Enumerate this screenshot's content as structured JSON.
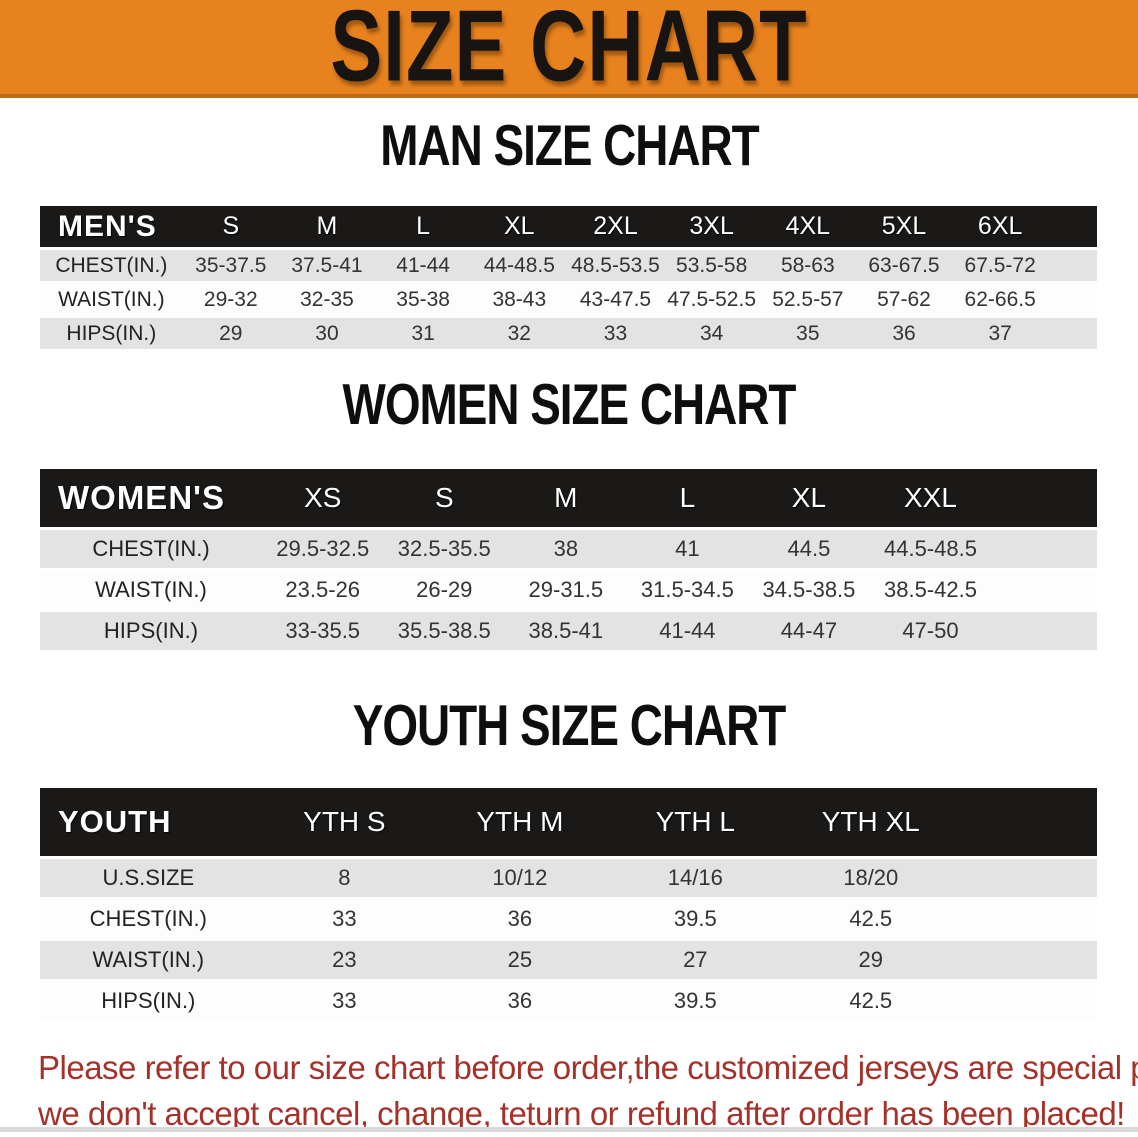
{
  "banner": {
    "title": "SIZE CHART",
    "bg_color": "#E8821E",
    "text_color": "#171412"
  },
  "colors": {
    "table_header_bg": "#1B1917",
    "row_shade": "#E3E3E3",
    "row_plain": "#FDFDFD",
    "disclaimer_text": "#A5322A"
  },
  "sections": [
    {
      "heading": "MAN SIZE CHART",
      "table": {
        "header_label": "MEN'S",
        "columns": [
          "S",
          "M",
          "L",
          "XL",
          "2XL",
          "3XL",
          "4XL",
          "5XL",
          "6XL"
        ],
        "rows": [
          {
            "label": "CHEST(IN.)",
            "values": [
              "35-37.5",
              "37.5-41",
              "41-44",
              "44-48.5",
              "48.5-53.5",
              "53.5-58",
              "58-63",
              "63-67.5",
              "67.5-72"
            ]
          },
          {
            "label": "WAIST(IN.)",
            "values": [
              "29-32",
              "32-35",
              "35-38",
              "38-43",
              "43-47.5",
              "47.5-52.5",
              "52.5-57",
              "57-62",
              "62-66.5"
            ]
          },
          {
            "label": "HIPS(IN.)",
            "values": [
              "29",
              "30",
              "31",
              "32",
              "33",
              "34",
              "35",
              "36",
              "37"
            ]
          }
        ]
      }
    },
    {
      "heading": "WOMEN SIZE CHART",
      "table": {
        "header_label": "WOMEN'S",
        "columns": [
          "XS",
          "S",
          "M",
          "L",
          "XL",
          "XXL"
        ],
        "rows": [
          {
            "label": "CHEST(IN.)",
            "values": [
              "29.5-32.5",
              "32.5-35.5",
              "38",
              "41",
              "44.5",
              "44.5-48.5"
            ]
          },
          {
            "label": "WAIST(IN.)",
            "values": [
              "23.5-26",
              "26-29",
              "29-31.5",
              "31.5-34.5",
              "34.5-38.5",
              "38.5-42.5"
            ]
          },
          {
            "label": "HIPS(IN.)",
            "values": [
              "33-35.5",
              "35.5-38.5",
              "38.5-41",
              "41-44",
              "44-47",
              "47-50"
            ]
          }
        ]
      }
    },
    {
      "heading": "YOUTH SIZE CHART",
      "table": {
        "header_label": "YOUTH",
        "columns": [
          "YTH S",
          "YTH M",
          "YTH L",
          "YTH XL"
        ],
        "rows": [
          {
            "label": "U.S.SIZE",
            "values": [
              "8",
              "10/12",
              "14/16",
              "18/20"
            ]
          },
          {
            "label": "CHEST(IN.)",
            "values": [
              "33",
              "36",
              "39.5",
              "42.5"
            ]
          },
          {
            "label": "WAIST(IN.)",
            "values": [
              "23",
              "25",
              "27",
              "29"
            ]
          },
          {
            "label": "HIPS(IN.)",
            "values": [
              "33",
              "36",
              "39.5",
              "42.5"
            ]
          }
        ]
      }
    }
  ],
  "disclaimer": {
    "line1": "Please refer to our size chart before order,the customized jerseys are special products,",
    "line2": "we don't accept cancel, change, teturn or refund after order has been placed!"
  }
}
